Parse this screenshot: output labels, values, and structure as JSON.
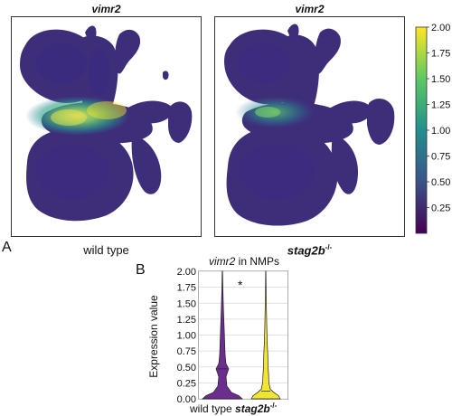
{
  "figure": {
    "panel_a_label": "A",
    "panel_b_label": "B",
    "umap_left": {
      "gene": "vimr2",
      "condition": "wild type"
    },
    "umap_right": {
      "gene": "vimr2",
      "condition_base": "stag2b",
      "condition_sup": "-/-"
    },
    "colorbar": {
      "ticks": [
        "2.00",
        "1.75",
        "1.50",
        "1.25",
        "1.00",
        "0.75",
        "0.50",
        "0.25"
      ],
      "colors": [
        "#440154",
        "#3b528b",
        "#21908d",
        "#5dc963",
        "#fde725"
      ]
    },
    "violin_title_gene": "vimr2",
    "violin_title_rest": " in NMPs",
    "violin_significance": "*",
    "violin_xlabel_1": "wild type",
    "violin_xlabel_2_base": "stag2b",
    "violin_xlabel_2_sup": "-/-"
  },
  "chart_data": {
    "type": "violin",
    "ylabel": "Expression value",
    "ylim": [
      0,
      2.0
    ],
    "yticks": [
      "0.00",
      "0.25",
      "0.50",
      "0.75",
      "1.00",
      "1.25",
      "1.50",
      "1.75",
      "2.00"
    ],
    "grid": true,
    "series": [
      {
        "category": "wild type",
        "color": "#6b2e8f",
        "min": 0.0,
        "max": 2.0,
        "median": 0.47
      },
      {
        "category": "stag2b-/-",
        "color": "#f2e531",
        "min": 0.0,
        "max": 2.0,
        "median": 0.12
      }
    ]
  }
}
